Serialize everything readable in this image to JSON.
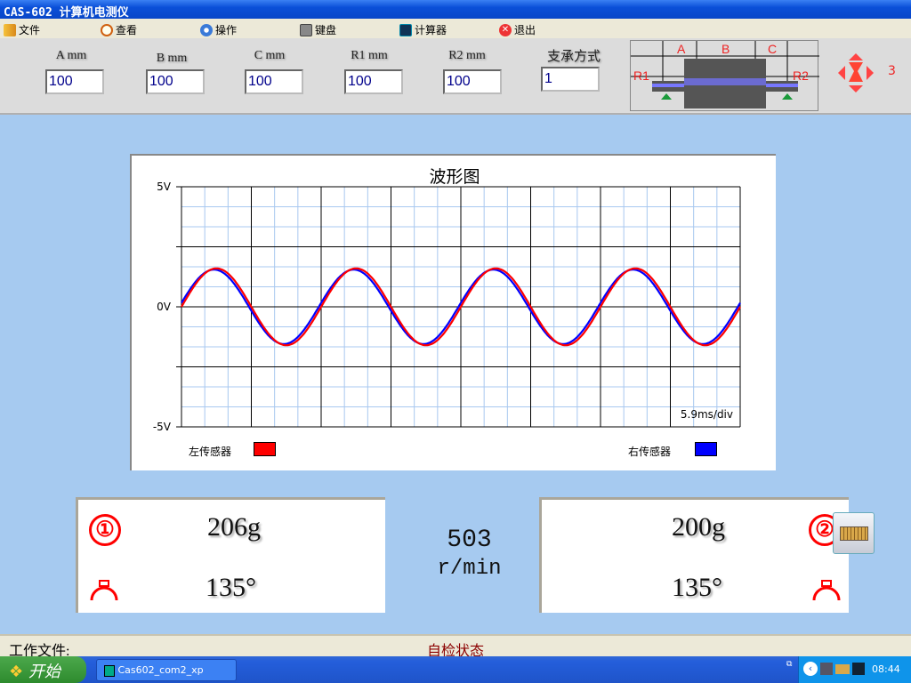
{
  "window": {
    "title": "CAS-602 计算机电测仪"
  },
  "menu": [
    {
      "label": "文件",
      "icon": "file-icon"
    },
    {
      "label": "查看",
      "icon": "magnifier-icon"
    },
    {
      "label": "操作",
      "icon": "gear-icon"
    },
    {
      "label": "键盘",
      "icon": "keyboard-icon"
    },
    {
      "label": "计算器",
      "icon": "calculator-icon"
    },
    {
      "label": "退出",
      "icon": "exit-icon"
    }
  ],
  "params": [
    {
      "label": "A  mm",
      "value": "100"
    },
    {
      "label": "B  mm",
      "value": "100"
    },
    {
      "label": "C  mm",
      "value": "100"
    },
    {
      "label": "R1  mm",
      "value": "100"
    },
    {
      "label": "R2  mm",
      "value": "100"
    },
    {
      "label": "支承方式",
      "value": "1"
    }
  ],
  "diagram": {
    "labels": [
      "A",
      "B",
      "C",
      "R1",
      "R2"
    ]
  },
  "direction_control": {
    "value": "3"
  },
  "chart_data": {
    "type": "line",
    "title": "波形图",
    "ylim": [
      -5,
      5
    ],
    "y_tick_labels": [
      "5V",
      "0V",
      "-5V"
    ],
    "x_scale_label": "5.9ms/div",
    "x_divisions": 8,
    "xlim_ms": [
      0,
      47.2
    ],
    "grid": true,
    "waveform": "sine",
    "series": [
      {
        "name": "左传感器",
        "color": "#ff0000",
        "amplitude_v": 1.6,
        "period_ms": 11.8,
        "phase_deg": 0
      },
      {
        "name": "右传感器",
        "color": "#0000ff",
        "amplitude_v": 1.55,
        "period_ms": 11.8,
        "phase_deg": 6
      }
    ],
    "legend": "bottom"
  },
  "left_plane": {
    "badge": "①",
    "weight": "206g",
    "angle": "135°"
  },
  "right_plane": {
    "badge": "②",
    "weight": "200g",
    "angle": "135°"
  },
  "speed": {
    "value": "503",
    "unit": "r/min"
  },
  "status": {
    "file_label": "工作文件:",
    "state": "自检状态"
  },
  "taskbar": {
    "start": "开始",
    "task": "Cas602_com2_xp",
    "clock": "08:44"
  }
}
